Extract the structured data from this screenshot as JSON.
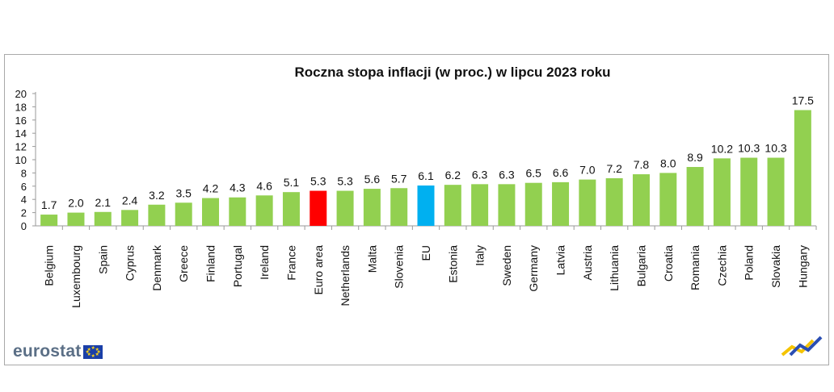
{
  "logo_text": "eurostat",
  "chart_data": {
    "type": "bar",
    "title": "Roczna stopa inflacji (w proc.) w lipcu 2023 roku",
    "xlabel": "",
    "ylabel": "",
    "ylim": [
      0,
      20
    ],
    "yticks": [
      "0",
      "2",
      "4",
      "6",
      "8",
      "10",
      "12",
      "14",
      "16",
      "18",
      "20"
    ],
    "categories": [
      "Belgium",
      "Luxembourg",
      "Spain",
      "Cyprus",
      "Denmark",
      "Greece",
      "Finland",
      "Portugal",
      "Ireland",
      "France",
      "Euro area",
      "Netherlands",
      "Malta",
      "Slovenia",
      "EU",
      "Estonia",
      "Italy",
      "Sweden",
      "Germany",
      "Latvia",
      "Austria",
      "Lithuania",
      "Bulgaria",
      "Croatia",
      "Romania",
      "Czechia",
      "Poland",
      "Slovakia",
      "Hungary"
    ],
    "values": [
      1.7,
      2.0,
      2.1,
      2.4,
      3.2,
      3.5,
      4.2,
      4.3,
      4.6,
      5.1,
      5.3,
      5.3,
      5.6,
      5.7,
      6.1,
      6.2,
      6.3,
      6.3,
      6.5,
      6.6,
      7.0,
      7.2,
      7.8,
      8.0,
      8.9,
      10.2,
      10.3,
      10.3,
      17.5
    ],
    "value_labels": [
      "1.7",
      "2.0",
      "2.1",
      "2.4",
      "3.2",
      "3.5",
      "4.2",
      "4.3",
      "4.6",
      "5.1",
      "5.3",
      "5.3",
      "5.6",
      "5.7",
      "6.1",
      "6.2",
      "6.3",
      "6.3",
      "6.5",
      "6.6",
      "7.0",
      "7.2",
      "7.8",
      "8.0",
      "8.9",
      "10.2",
      "10.3",
      "10.3",
      "17.5"
    ],
    "colors": {
      "default": "#92d050",
      "Euro area": "#ff0000",
      "EU": "#00b0f0"
    },
    "grid": false,
    "legend": "none"
  }
}
